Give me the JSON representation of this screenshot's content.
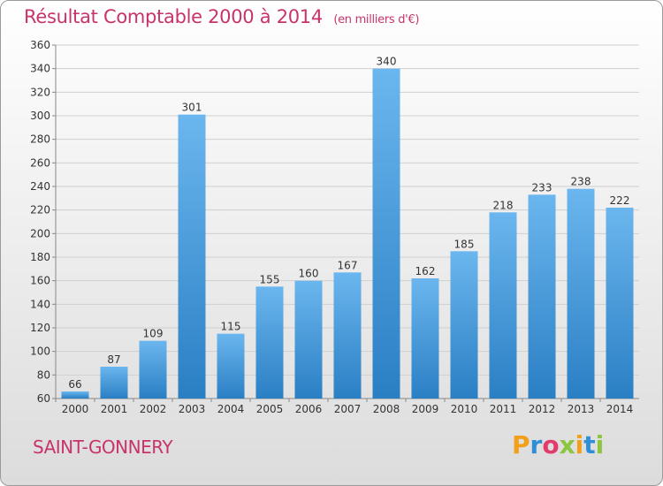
{
  "title": "Résultat Comptable 2000 à 2014",
  "title_unit": "(en milliers d'€)",
  "commune": "SAINT-GONNERY",
  "logo": {
    "text": "Proxiti",
    "letters": [
      {
        "ch": "P",
        "color": "#f2a01c"
      },
      {
        "ch": "r",
        "color": "#2f8fd6"
      },
      {
        "ch": "o",
        "color": "#e23c6a"
      },
      {
        "ch": "x",
        "color": "#8cc63f"
      },
      {
        "ch": "i",
        "color": "#f2a01c"
      },
      {
        "ch": "t",
        "color": "#2f8fd6"
      },
      {
        "ch": "i",
        "color": "#8cc63f"
      }
    ]
  },
  "colors": {
    "title": "#c8336b",
    "bar_light": "#6bb6ee",
    "bar_dark": "#2a7fc4",
    "grid": "#cfcfcf"
  },
  "chart_data": {
    "type": "bar",
    "categories": [
      "2000",
      "2001",
      "2002",
      "2003",
      "2004",
      "2005",
      "2006",
      "2007",
      "2008",
      "2009",
      "2010",
      "2011",
      "2012",
      "2013",
      "2014"
    ],
    "values": [
      66,
      87,
      109,
      301,
      115,
      155,
      160,
      167,
      340,
      162,
      185,
      218,
      233,
      238,
      222
    ],
    "ylim": [
      60,
      360
    ],
    "yticks": [
      60,
      80,
      100,
      120,
      140,
      160,
      180,
      200,
      220,
      240,
      260,
      280,
      300,
      320,
      340,
      360
    ],
    "grid": true,
    "title": "Résultat Comptable 2000 à 2014",
    "xlabel": "",
    "ylabel": ""
  }
}
